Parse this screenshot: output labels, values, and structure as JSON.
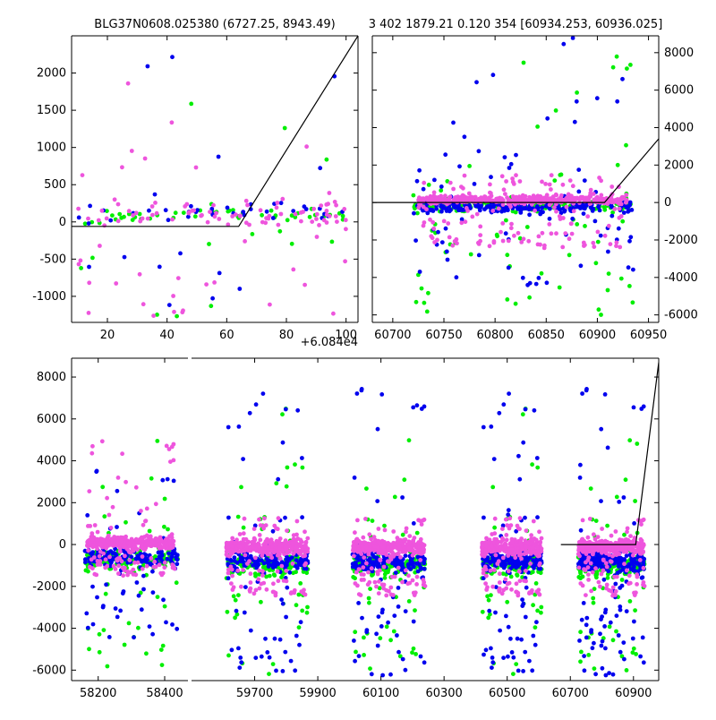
{
  "colors": {
    "green": "#00ee00",
    "blue": "#0000ee",
    "pink": "#ee55dd",
    "model": "#000000",
    "frame": "#000000"
  },
  "chart_data": [
    {
      "id": "top-left",
      "type": "scatter",
      "title": "BLG37N0608.025380 (6727.25, 8943.49)",
      "offset_label": "+6.084e4",
      "xlim": [
        8,
        104
      ],
      "ylim": [
        -1350,
        2500
      ],
      "xticks": [
        20,
        40,
        60,
        80,
        100
      ],
      "yticks": [
        -1000,
        -500,
        0,
        500,
        1000,
        1500,
        2000
      ],
      "y_side": "left",
      "model": [
        [
          8,
          -60
        ],
        [
          64,
          -60
        ],
        [
          104,
          2500
        ]
      ],
      "series": [
        {
          "name": "green",
          "n": 60,
          "core": [
            10,
            100,
            -150,
            350
          ],
          "spread": [
            10,
            100,
            -1300,
            2100
          ]
        },
        {
          "name": "blue",
          "n": 50,
          "core": [
            10,
            100,
            -200,
            400
          ],
          "spread": [
            10,
            100,
            -1300,
            2400
          ]
        },
        {
          "name": "pink",
          "n": 110,
          "core": [
            10,
            100,
            -250,
            450
          ],
          "spread": [
            10,
            100,
            -1300,
            2300
          ]
        }
      ]
    },
    {
      "id": "top-right",
      "type": "scatter",
      "title": "3 402 1879.21 0.120 354 [60934.253, 60936.025]",
      "xlim": [
        60680,
        60960
      ],
      "ylim": [
        -6400,
        8900
      ],
      "xticks": [
        60700,
        60750,
        60800,
        60850,
        60900,
        60950
      ],
      "yticks": [
        -6000,
        -4000,
        -2000,
        0,
        2000,
        4000,
        6000,
        8000
      ],
      "y_side": "right",
      "model": [
        [
          60680,
          0
        ],
        [
          60907,
          0
        ],
        [
          60960,
          3400
        ]
      ],
      "series": [
        {
          "name": "green",
          "n": 220,
          "core": [
            60720,
            60935,
            -800,
            500
          ],
          "spread": [
            60720,
            60935,
            -6200,
            8000
          ]
        },
        {
          "name": "blue",
          "n": 260,
          "core": [
            60720,
            60935,
            -900,
            400
          ],
          "spread": [
            60720,
            60935,
            -4500,
            8800
          ]
        },
        {
          "name": "pink",
          "n": 520,
          "core": [
            60725,
            60930,
            -300,
            600
          ],
          "spread": [
            60725,
            60930,
            -2500,
            1500
          ]
        }
      ]
    },
    {
      "id": "bottom",
      "type": "scatter",
      "title": "",
      "ylim": [
        -6500,
        8900
      ],
      "yticks": [
        -6000,
        -4000,
        -2000,
        0,
        2000,
        4000,
        6000,
        8000
      ],
      "y_side": "left",
      "segments": [
        {
          "xlim": [
            58120,
            58470
          ],
          "xticks": [
            58200,
            58400
          ],
          "model": null,
          "series": [
            {
              "name": "green",
              "n": 150,
              "core": [
                58160,
                58440,
                -1800,
                300
              ],
              "spread": [
                58160,
                58440,
                -6200,
                6400
              ]
            },
            {
              "name": "blue",
              "n": 170,
              "core": [
                58160,
                58440,
                -1500,
                300
              ],
              "spread": [
                58160,
                58440,
                -4500,
                4200
              ]
            },
            {
              "name": "pink",
              "n": 400,
              "core": [
                58165,
                58430,
                -500,
                700
              ],
              "spread": [
                58165,
                58430,
                -1500,
                5200
              ]
            }
          ]
        },
        {
          "xlim": [
            59500,
            60980
          ],
          "xticks": [
            59700,
            59900,
            60100,
            60300,
            60500,
            60700,
            60900
          ],
          "model": [
            [
              60670,
              0
            ],
            [
              60907,
              0
            ],
            [
              60980,
              8700
            ]
          ],
          "clusters": [
            {
              "x": [
                59610,
                59870
              ],
              "nG": 150,
              "nB": 180,
              "nP": 380
            },
            {
              "x": [
                60010,
                60240
              ],
              "nG": 150,
              "nB": 200,
              "nP": 380
            },
            {
              "x": [
                60420,
                60610
              ],
              "nG": 120,
              "nB": 200,
              "nP": 360
            },
            {
              "x": [
                60725,
                60935
              ],
              "nG": 180,
              "nB": 260,
              "nP": 360
            }
          ],
          "series_shape": {
            "green": {
              "core": [
                -2200,
                200
              ],
              "spread": [
                -6300,
                6500
              ]
            },
            "blue": {
              "core": [
                -1800,
                200
              ],
              "spread": [
                -6300,
                8800
              ]
            },
            "pink": {
              "core": [
                -800,
                600
              ],
              "spread": [
                -2500,
                1300
              ]
            }
          }
        }
      ]
    }
  ]
}
